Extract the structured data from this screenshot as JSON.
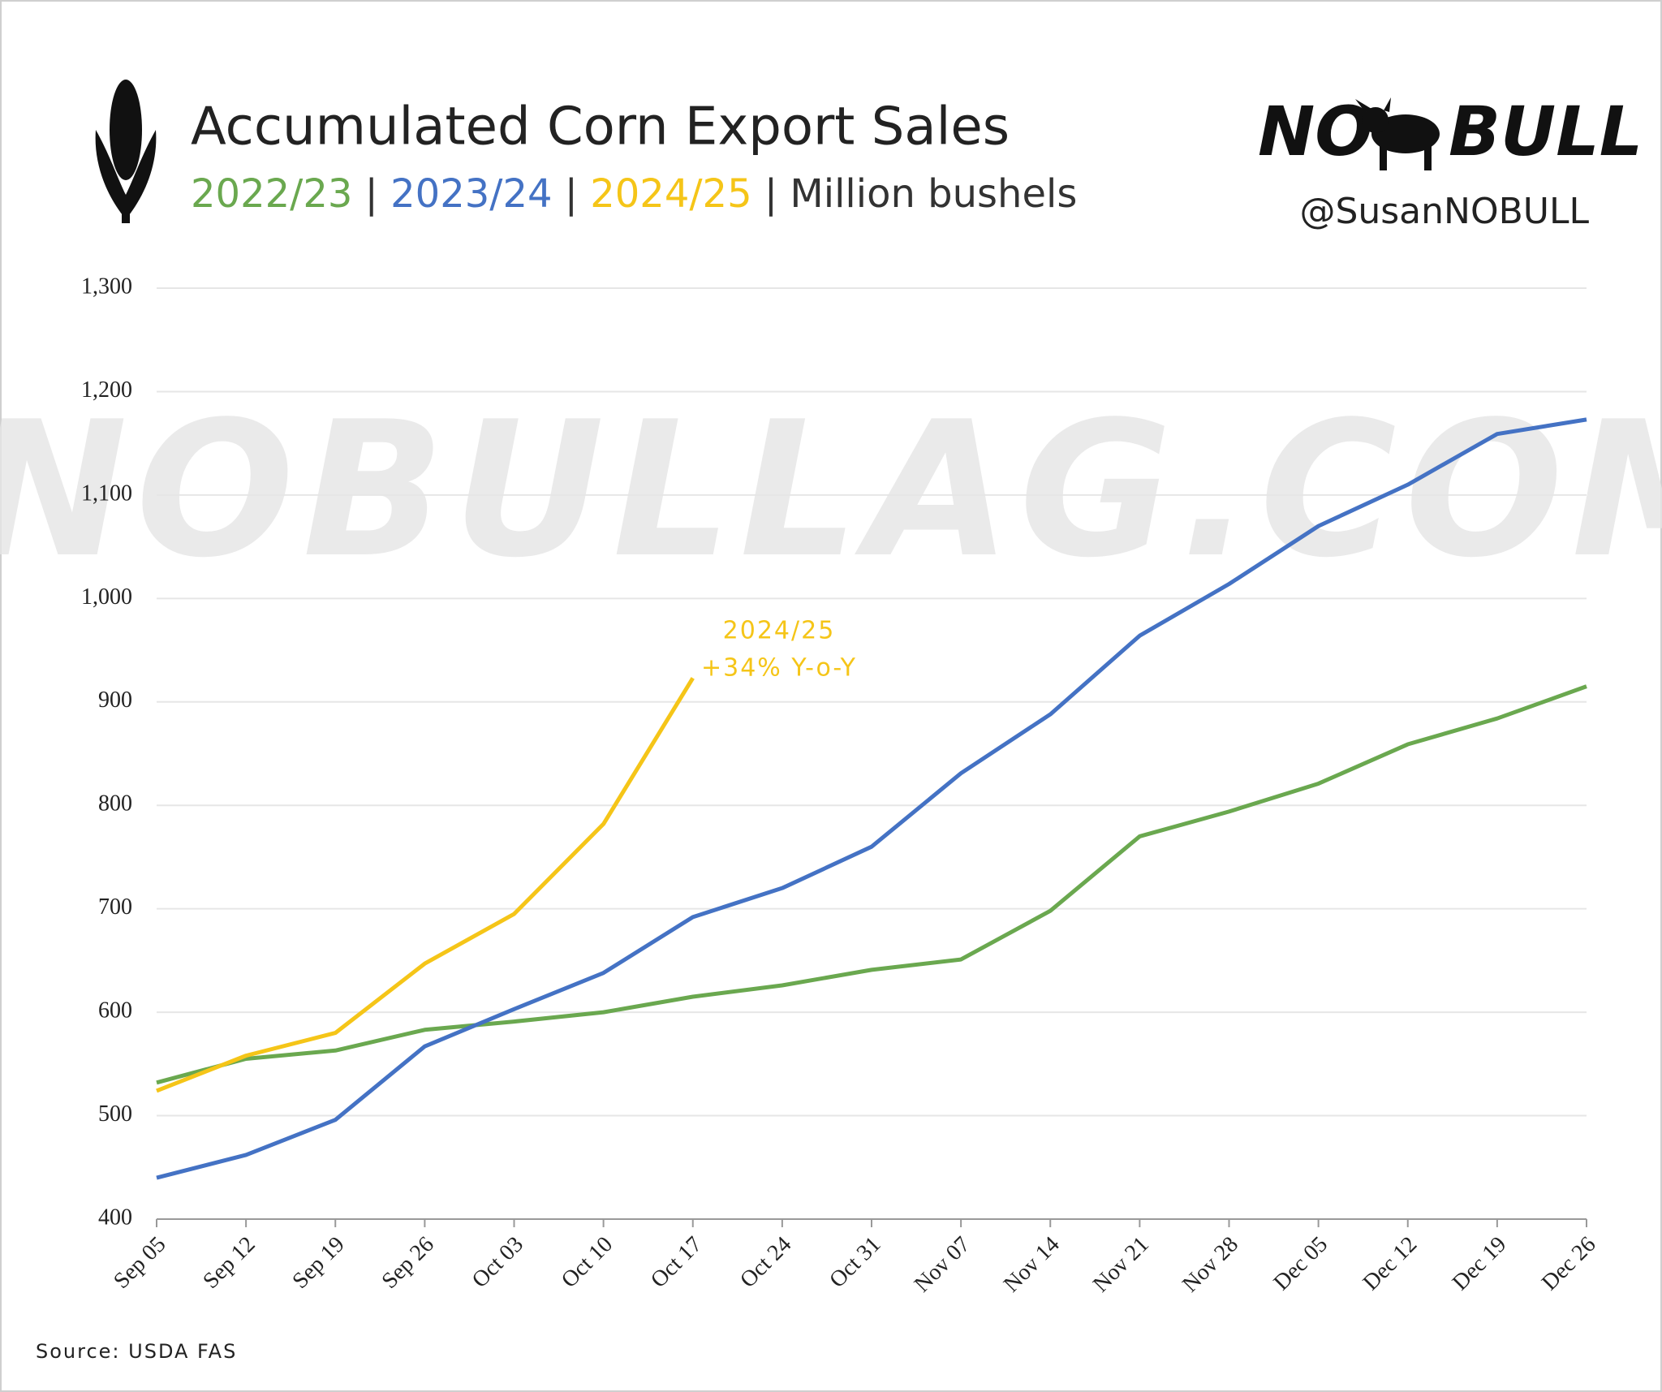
{
  "chart_data": {
    "type": "line",
    "title": "Accumulated Corn Export Sales",
    "unit": "Million bushels",
    "separator": "|",
    "watermark": "NOBULLAG.COM",
    "logo": [
      "NO",
      "BULL"
    ],
    "handle": "@SusanNOBULL",
    "source": "Source: USDA FAS",
    "annotation": {
      "series": 2,
      "lines": [
        "2024/25",
        "+34% Y-o-Y"
      ]
    },
    "categories": [
      "Sep 05",
      "Sep 12",
      "Sep 19",
      "Sep 26",
      "Oct 03",
      "Oct 10",
      "Oct 17",
      "Oct 24",
      "Oct 31",
      "Nov 07",
      "Nov 14",
      "Nov 21",
      "Nov 28",
      "Dec 05",
      "Dec 12",
      "Dec 19",
      "Dec 26"
    ],
    "series": [
      {
        "name": "2022/23",
        "color": "#6aa84f",
        "values": [
          532,
          555,
          563,
          583,
          591,
          600,
          615,
          626,
          641,
          651,
          698,
          770,
          794,
          821,
          859,
          884,
          915
        ]
      },
      {
        "name": "2023/24",
        "color": "#4472c4",
        "values": [
          440,
          462,
          496,
          567,
          603,
          638,
          692,
          720,
          760,
          831,
          888,
          964,
          1014,
          1070,
          1110,
          1159,
          1173
        ]
      },
      {
        "name": "2024/25",
        "color": "#f5c518",
        "values": [
          524,
          558,
          580,
          647,
          695,
          782,
          923,
          null,
          null,
          null,
          null,
          null,
          null,
          null,
          null,
          null,
          null
        ]
      }
    ],
    "ylim": [
      400,
      1300
    ],
    "yticks": [
      {
        "value": 400,
        "label": "400"
      },
      {
        "value": 500,
        "label": "500"
      },
      {
        "value": 600,
        "label": "600"
      },
      {
        "value": 700,
        "label": "700"
      },
      {
        "value": 800,
        "label": "800"
      },
      {
        "value": 900,
        "label": "900"
      },
      {
        "value": 1000,
        "label": "1,000"
      },
      {
        "value": 1100,
        "label": "1,100"
      },
      {
        "value": 1200,
        "label": "1,200"
      },
      {
        "value": 1300,
        "label": "1,300"
      }
    ],
    "grid": true
  }
}
